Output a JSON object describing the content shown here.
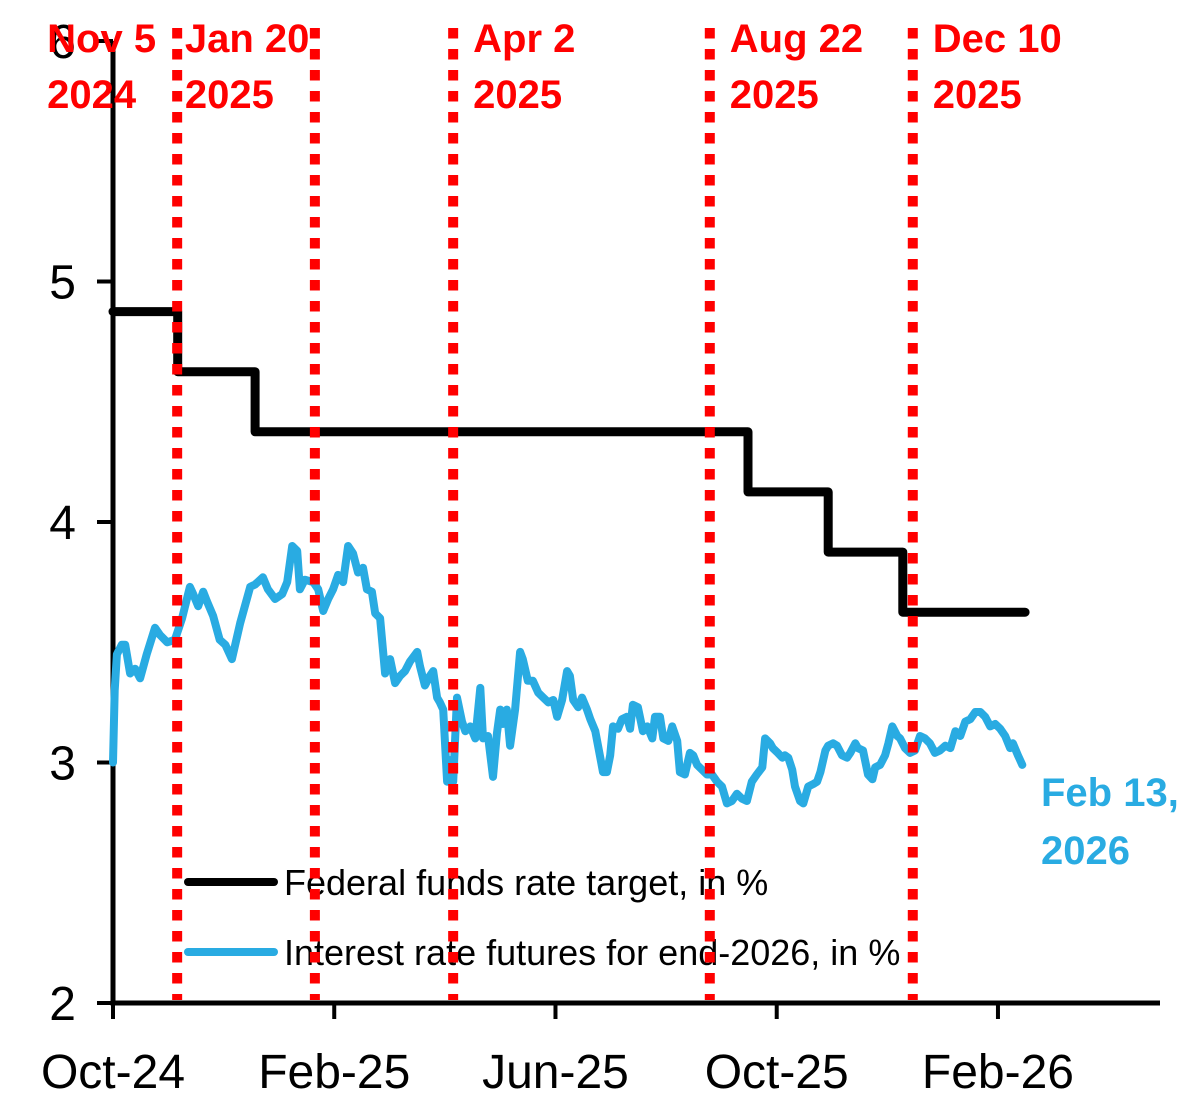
{
  "colors": {
    "event_red": "#ff0000",
    "axis_black": "#000000",
    "futures_blue": "#29abe2"
  },
  "chart_data": {
    "type": "line",
    "title": "",
    "xlabel": "",
    "ylabel": "",
    "ylim": [
      2,
      6
    ],
    "grid": false,
    "legend_position": "inside-bottom-left",
    "yticks": [
      6,
      5,
      4,
      3,
      2
    ],
    "xticks": [
      {
        "label": "Oct-24",
        "m": 0
      },
      {
        "label": "Feb-25",
        "m": 4
      },
      {
        "label": "Jun-25",
        "m": 8
      },
      {
        "label": "Oct-25",
        "m": 12
      },
      {
        "label": "Feb-26",
        "m": 16
      }
    ],
    "events": [
      {
        "line1": "Nov 5",
        "line2": "2024",
        "m": 1.16,
        "side": "left"
      },
      {
        "line1": "Jan 20",
        "line2": "2025",
        "m": 3.65,
        "side": "left"
      },
      {
        "line1": "Apr 2",
        "line2": "2025",
        "m": 6.15,
        "side": "right"
      },
      {
        "line1": "Aug 22",
        "line2": "2025",
        "m": 10.79,
        "side": "right"
      },
      {
        "line1": "Dec 10",
        "line2": "2025",
        "m": 14.46,
        "side": "right"
      }
    ],
    "series": [
      {
        "name": "Federal funds rate target, in %",
        "color": "#000000",
        "style": "step",
        "points": [
          [
            0.0,
            4.875
          ],
          [
            1.17,
            4.875
          ],
          [
            1.17,
            4.625
          ],
          [
            2.57,
            4.625
          ],
          [
            2.57,
            4.375
          ],
          [
            11.48,
            4.375
          ],
          [
            11.48,
            4.125
          ],
          [
            12.93,
            4.125
          ],
          [
            12.93,
            3.875
          ],
          [
            14.28,
            3.875
          ],
          [
            14.28,
            3.625
          ],
          [
            16.49,
            3.625
          ]
        ]
      },
      {
        "name": "Interest rate futures for end-2026, in %",
        "color": "#29abe2",
        "style": "line",
        "points": [
          [
            0.0,
            3.0
          ],
          [
            0.03,
            3.3
          ],
          [
            0.07,
            3.45
          ],
          [
            0.16,
            3.49
          ],
          [
            0.22,
            3.49
          ],
          [
            0.31,
            3.37
          ],
          [
            0.4,
            3.39
          ],
          [
            0.49,
            3.35
          ],
          [
            0.61,
            3.45
          ],
          [
            0.76,
            3.56
          ],
          [
            0.85,
            3.53
          ],
          [
            0.98,
            3.5
          ],
          [
            1.12,
            3.51
          ],
          [
            1.25,
            3.6
          ],
          [
            1.39,
            3.73
          ],
          [
            1.45,
            3.7
          ],
          [
            1.54,
            3.65
          ],
          [
            1.63,
            3.71
          ],
          [
            1.7,
            3.67
          ],
          [
            1.81,
            3.61
          ],
          [
            1.93,
            3.51
          ],
          [
            2.03,
            3.49
          ],
          [
            2.15,
            3.43
          ],
          [
            2.3,
            3.58
          ],
          [
            2.48,
            3.73
          ],
          [
            2.57,
            3.74
          ],
          [
            2.71,
            3.77
          ],
          [
            2.8,
            3.72
          ],
          [
            2.93,
            3.68
          ],
          [
            3.06,
            3.7
          ],
          [
            3.15,
            3.75
          ],
          [
            3.24,
            3.9
          ],
          [
            3.33,
            3.88
          ],
          [
            3.38,
            3.72
          ],
          [
            3.47,
            3.76
          ],
          [
            3.62,
            3.75
          ],
          [
            3.71,
            3.72
          ],
          [
            3.8,
            3.63
          ],
          [
            3.89,
            3.68
          ],
          [
            3.98,
            3.72
          ],
          [
            4.07,
            3.78
          ],
          [
            4.16,
            3.75
          ],
          [
            4.25,
            3.9
          ],
          [
            4.34,
            3.87
          ],
          [
            4.43,
            3.79
          ],
          [
            4.52,
            3.81
          ],
          [
            4.59,
            3.72
          ],
          [
            4.68,
            3.71
          ],
          [
            4.74,
            3.62
          ],
          [
            4.83,
            3.6
          ],
          [
            4.92,
            3.37
          ],
          [
            5.01,
            3.43
          ],
          [
            5.1,
            3.33
          ],
          [
            5.19,
            3.36
          ],
          [
            5.28,
            3.38
          ],
          [
            5.37,
            3.42
          ],
          [
            5.5,
            3.46
          ],
          [
            5.55,
            3.4
          ],
          [
            5.64,
            3.32
          ],
          [
            5.73,
            3.36
          ],
          [
            5.79,
            3.38
          ],
          [
            5.86,
            3.27
          ],
          [
            5.91,
            3.25
          ],
          [
            5.97,
            3.22
          ],
          [
            6.04,
            2.92
          ],
          [
            6.09,
            3.01
          ],
          [
            6.15,
            2.92
          ],
          [
            6.22,
            3.27
          ],
          [
            6.31,
            3.17
          ],
          [
            6.37,
            3.13
          ],
          [
            6.46,
            3.15
          ],
          [
            6.55,
            3.1
          ],
          [
            6.64,
            3.31
          ],
          [
            6.69,
            3.1
          ],
          [
            6.78,
            3.11
          ],
          [
            6.87,
            2.94
          ],
          [
            6.94,
            3.12
          ],
          [
            7.0,
            3.22
          ],
          [
            7.05,
            3.16
          ],
          [
            7.12,
            3.22
          ],
          [
            7.18,
            3.07
          ],
          [
            7.27,
            3.22
          ],
          [
            7.36,
            3.46
          ],
          [
            7.41,
            3.43
          ],
          [
            7.5,
            3.34
          ],
          [
            7.59,
            3.34
          ],
          [
            7.69,
            3.29
          ],
          [
            7.78,
            3.27
          ],
          [
            7.87,
            3.25
          ],
          [
            7.96,
            3.26
          ],
          [
            8.03,
            3.19
          ],
          [
            8.12,
            3.26
          ],
          [
            8.21,
            3.38
          ],
          [
            8.26,
            3.36
          ],
          [
            8.32,
            3.26
          ],
          [
            8.41,
            3.23
          ],
          [
            8.48,
            3.27
          ],
          [
            8.57,
            3.22
          ],
          [
            8.63,
            3.18
          ],
          [
            8.72,
            3.13
          ],
          [
            8.81,
            3.02
          ],
          [
            8.86,
            2.96
          ],
          [
            8.93,
            2.96
          ],
          [
            8.99,
            3.03
          ],
          [
            9.04,
            3.15
          ],
          [
            9.13,
            3.14
          ],
          [
            9.2,
            3.18
          ],
          [
            9.29,
            3.19
          ],
          [
            9.35,
            3.14
          ],
          [
            9.4,
            3.24
          ],
          [
            9.49,
            3.23
          ],
          [
            9.58,
            3.13
          ],
          [
            9.66,
            3.15
          ],
          [
            9.75,
            3.1
          ],
          [
            9.8,
            3.19
          ],
          [
            9.89,
            3.19
          ],
          [
            9.95,
            3.1
          ],
          [
            10.04,
            3.09
          ],
          [
            10.11,
            3.15
          ],
          [
            10.2,
            3.09
          ],
          [
            10.25,
            2.96
          ],
          [
            10.34,
            2.95
          ],
          [
            10.43,
            3.04
          ],
          [
            10.49,
            3.03
          ],
          [
            10.56,
            2.99
          ],
          [
            10.65,
            2.97
          ],
          [
            10.74,
            2.95
          ],
          [
            10.83,
            2.95
          ],
          [
            10.92,
            2.92
          ],
          [
            11.01,
            2.9
          ],
          [
            11.1,
            2.83
          ],
          [
            11.19,
            2.84
          ],
          [
            11.28,
            2.87
          ],
          [
            11.37,
            2.85
          ],
          [
            11.46,
            2.84
          ],
          [
            11.55,
            2.92
          ],
          [
            11.64,
            2.95
          ],
          [
            11.74,
            2.98
          ],
          [
            11.79,
            3.1
          ],
          [
            11.88,
            3.08
          ],
          [
            11.93,
            3.06
          ],
          [
            12.02,
            3.04
          ],
          [
            12.1,
            3.02
          ],
          [
            12.15,
            3.03
          ],
          [
            12.21,
            3.02
          ],
          [
            12.28,
            2.97
          ],
          [
            12.33,
            2.9
          ],
          [
            12.42,
            2.84
          ],
          [
            12.48,
            2.83
          ],
          [
            12.57,
            2.9
          ],
          [
            12.66,
            2.91
          ],
          [
            12.73,
            2.92
          ],
          [
            12.79,
            2.96
          ],
          [
            12.88,
            3.05
          ],
          [
            12.93,
            3.07
          ],
          [
            13.02,
            3.08
          ],
          [
            13.09,
            3.07
          ],
          [
            13.18,
            3.03
          ],
          [
            13.27,
            3.02
          ],
          [
            13.33,
            3.04
          ],
          [
            13.42,
            3.08
          ],
          [
            13.47,
            3.06
          ],
          [
            13.56,
            3.05
          ],
          [
            13.65,
            2.95
          ],
          [
            13.73,
            2.93
          ],
          [
            13.78,
            2.98
          ],
          [
            13.87,
            2.99
          ],
          [
            13.96,
            3.03
          ],
          [
            14.02,
            3.08
          ],
          [
            14.09,
            3.15
          ],
          [
            14.18,
            3.11
          ],
          [
            14.23,
            3.1
          ],
          [
            14.32,
            3.06
          ],
          [
            14.41,
            3.04
          ],
          [
            14.5,
            3.05
          ],
          [
            14.59,
            3.11
          ],
          [
            14.68,
            3.1
          ],
          [
            14.77,
            3.08
          ],
          [
            14.86,
            3.04
          ],
          [
            14.95,
            3.05
          ],
          [
            15.05,
            3.07
          ],
          [
            15.14,
            3.06
          ],
          [
            15.23,
            3.13
          ],
          [
            15.32,
            3.11
          ],
          [
            15.41,
            3.17
          ],
          [
            15.5,
            3.18
          ],
          [
            15.59,
            3.21
          ],
          [
            15.68,
            3.21
          ],
          [
            15.77,
            3.19
          ],
          [
            15.86,
            3.15
          ],
          [
            15.95,
            3.16
          ],
          [
            16.04,
            3.14
          ],
          [
            16.13,
            3.11
          ],
          [
            16.22,
            3.06
          ],
          [
            16.27,
            3.08
          ],
          [
            16.36,
            3.03
          ],
          [
            16.44,
            2.99
          ]
        ]
      }
    ],
    "annotation": {
      "line1": "Feb 13,",
      "line2": "2026",
      "color": "#29abe2"
    }
  }
}
